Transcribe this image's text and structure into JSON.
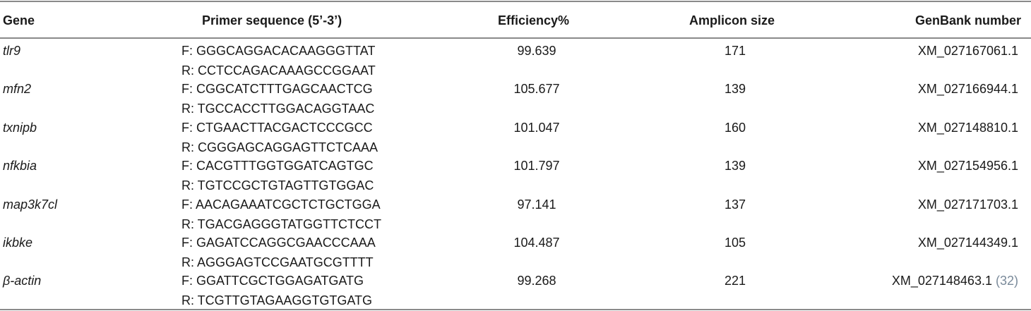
{
  "header": {
    "gene": "Gene",
    "primer": "Primer sequence (5’-3’)",
    "efficiency": "Efficiency%",
    "amplicon": "Amplicon size",
    "genbank": "GenBank number"
  },
  "rows": [
    {
      "gene": "tlr9",
      "forward": "F: GGGCAGGACACAAGGGTTAT",
      "reverse": "R: CCTCCAGACAAAGCCGGAAT",
      "efficiency": "99.639",
      "amplicon": "171",
      "genbank": "XM_027167061.1",
      "ref": ""
    },
    {
      "gene": "mfn2",
      "forward": "F: CGGCATCTTTGAGCAACTCG",
      "reverse": "R: TGCCACCTTGGACAGGTAAC",
      "efficiency": "105.677",
      "amplicon": "139",
      "genbank": "XM_027166944.1",
      "ref": ""
    },
    {
      "gene": "txnipb",
      "forward": "F: CTGAACTTACGACTCCCGCC",
      "reverse": "R: CGGGAGCAGGAGTTCTCAAA",
      "efficiency": "101.047",
      "amplicon": "160",
      "genbank": "XM_027148810.1",
      "ref": ""
    },
    {
      "gene": "nfkbia",
      "forward": "F: CACGTTTGGTGGATCAGTGC",
      "reverse": "R: TGTCCGCTGTAGTTGTGGAC",
      "efficiency": "101.797",
      "amplicon": "139",
      "genbank": "XM_027154956.1",
      "ref": ""
    },
    {
      "gene": "map3k7cl",
      "forward": "F: AACAGAAATCGCTCTGCTGGA",
      "reverse": "R: TGACGAGGGTATGGTTCTCCT",
      "efficiency": "97.141",
      "amplicon": "137",
      "genbank": "XM_027171703.1",
      "ref": ""
    },
    {
      "gene": "ikbke",
      "forward": "F: GAGATCCAGGCGAACCCAAA",
      "reverse": "R: AGGGAGTCCGAATGCGTTTT",
      "efficiency": "104.487",
      "amplicon": "105",
      "genbank": "XM_027144349.1",
      "ref": ""
    },
    {
      "gene": "β-actin",
      "forward": "F: GGATTCGCTGGAGATGATG",
      "reverse": "R: TCGTTGTAGAAGGTGTGATG",
      "efficiency": "99.268",
      "amplicon": "221",
      "genbank": "XM_027148463.1",
      "ref": "(32)"
    }
  ]
}
